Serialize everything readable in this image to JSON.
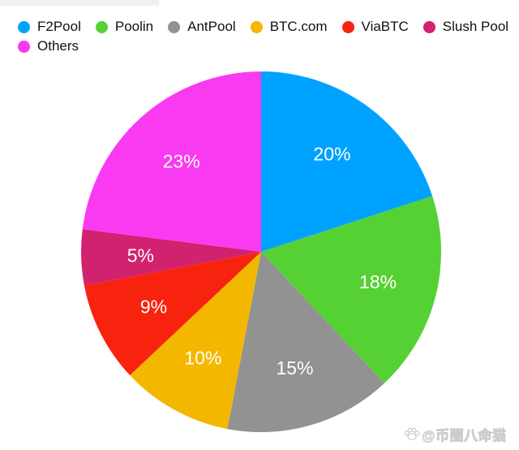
{
  "chart_data": {
    "type": "pie",
    "title": "",
    "categories": [
      "F2Pool",
      "Poolin",
      "AntPool",
      "BTC.com",
      "ViaBTC",
      "Slush Pool",
      "Others"
    ],
    "values": [
      20,
      18,
      15,
      10,
      9,
      5,
      23
    ],
    "unit": "%",
    "value_labels": [
      "20%",
      "18%",
      "15%",
      "10%",
      "9%",
      "5%",
      "23%"
    ],
    "colors": [
      "#00a2ff",
      "#56d133",
      "#929292",
      "#f3b700",
      "#f8230e",
      "#d0226f",
      "#fa3af0"
    ],
    "start_angle_deg_from_top": 0,
    "direction": "clockwise",
    "legend_position": "top-left",
    "label_color": "#ffffff"
  },
  "watermark": {
    "text": "@币圈八命猫",
    "icon": "paw-icon",
    "color": "#cccccc"
  }
}
